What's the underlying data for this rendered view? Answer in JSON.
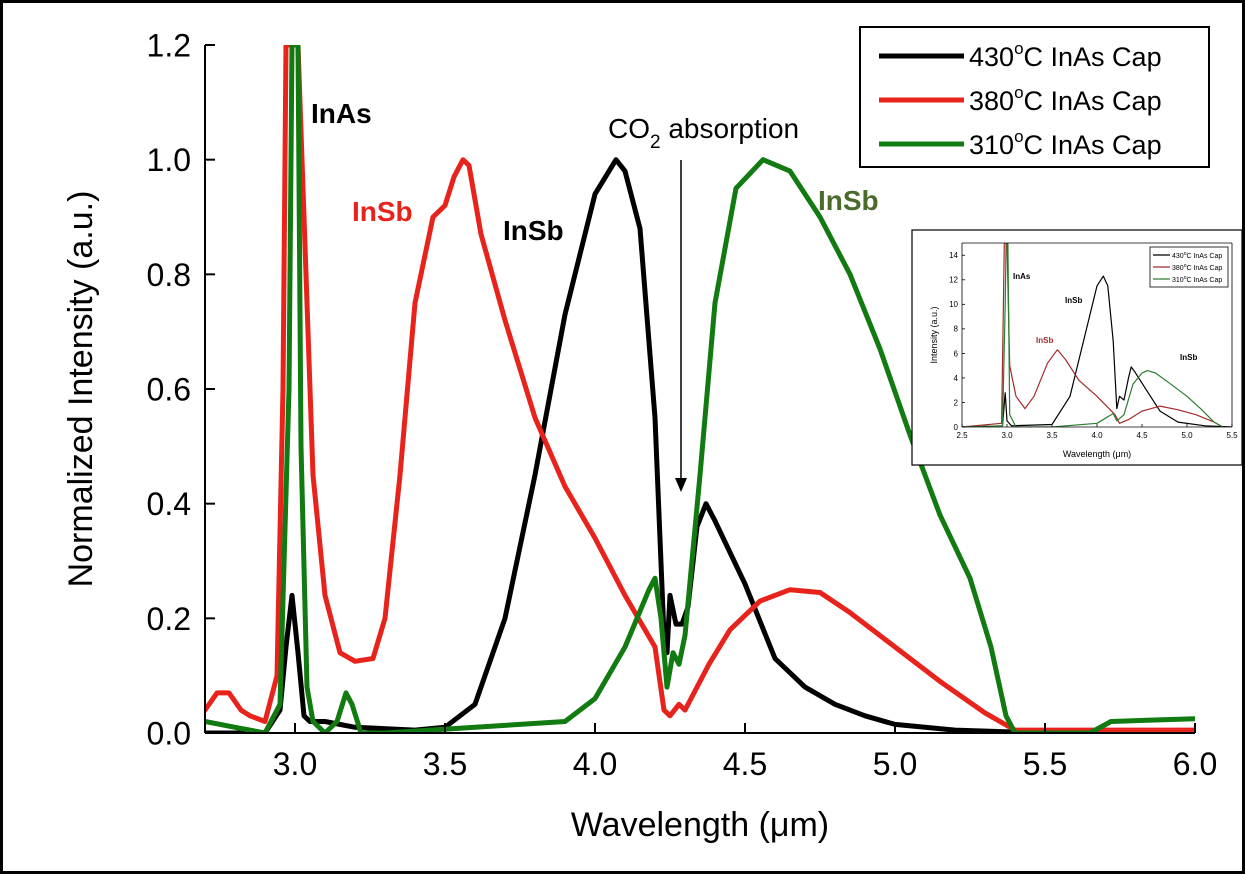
{
  "chart_data": [
    {
      "type": "line",
      "xlabel": "Wavelength (μm)",
      "ylabel": "Normalized Intensity (a.u.)",
      "xlim": [
        2.7,
        6.0
      ],
      "ylim": [
        0.0,
        1.2
      ],
      "x_ticks": [
        "3.0",
        "3.5",
        "4.0",
        "4.5",
        "5.0",
        "5.5",
        "6.0"
      ],
      "y_ticks": [
        "0.0",
        "0.2",
        "0.4",
        "0.6",
        "0.8",
        "1.0",
        "1.2"
      ],
      "legend_position": "top-right",
      "legend": [
        {
          "temp": "430",
          "sup": "o",
          "rest": "C InAs Cap"
        },
        {
          "temp": "380",
          "sup": "o",
          "rest": "C InAs Cap"
        },
        {
          "temp": "310",
          "sup": "o",
          "rest": "C InAs Cap"
        }
      ],
      "annotations": {
        "inas": "InAs",
        "insb_red": "InSb",
        "insb_black": "InSb",
        "insb_green": "InSb",
        "co2_main": "CO",
        "co2_sub": "2",
        "co2_rest": " absorption"
      },
      "series": [
        {
          "name": "430°C InAs Cap",
          "color": "#000000",
          "points": [
            [
              2.7,
              0.0
            ],
            [
              2.9,
              0.0
            ],
            [
              2.95,
              0.04
            ],
            [
              2.97,
              0.15
            ],
            [
              2.99,
              0.24
            ],
            [
              3.01,
              0.14
            ],
            [
              3.03,
              0.03
            ],
            [
              3.05,
              0.02
            ],
            [
              3.1,
              0.02
            ],
            [
              3.2,
              0.01
            ],
            [
              3.4,
              0.005
            ],
            [
              3.5,
              0.01
            ],
            [
              3.6,
              0.05
            ],
            [
              3.7,
              0.2
            ],
            [
              3.8,
              0.45
            ],
            [
              3.9,
              0.73
            ],
            [
              4.0,
              0.94
            ],
            [
              4.07,
              1.0
            ],
            [
              4.1,
              0.98
            ],
            [
              4.15,
              0.88
            ],
            [
              4.2,
              0.55
            ],
            [
              4.23,
              0.17
            ],
            [
              4.24,
              0.14
            ],
            [
              4.25,
              0.24
            ],
            [
              4.27,
              0.19
            ],
            [
              4.29,
              0.19
            ],
            [
              4.31,
              0.22
            ],
            [
              4.34,
              0.36
            ],
            [
              4.37,
              0.4
            ],
            [
              4.4,
              0.37
            ],
            [
              4.5,
              0.26
            ],
            [
              4.6,
              0.13
            ],
            [
              4.7,
              0.08
            ],
            [
              4.8,
              0.05
            ],
            [
              4.9,
              0.03
            ],
            [
              5.0,
              0.015
            ],
            [
              5.2,
              0.005
            ],
            [
              5.5,
              0.0
            ],
            [
              6.0,
              0.0
            ]
          ]
        },
        {
          "name": "380°C InAs Cap",
          "color": "#e8231c",
          "points": [
            [
              2.7,
              0.04
            ],
            [
              2.74,
              0.07
            ],
            [
              2.78,
              0.07
            ],
            [
              2.82,
              0.04
            ],
            [
              2.85,
              0.03
            ],
            [
              2.9,
              0.02
            ],
            [
              2.94,
              0.1
            ],
            [
              2.96,
              0.6
            ],
            [
              2.97,
              1.2
            ],
            [
              3.01,
              1.2
            ],
            [
              3.03,
              0.9
            ],
            [
              3.06,
              0.45
            ],
            [
              3.1,
              0.24
            ],
            [
              3.15,
              0.14
            ],
            [
              3.2,
              0.125
            ],
            [
              3.26,
              0.13
            ],
            [
              3.3,
              0.2
            ],
            [
              3.35,
              0.45
            ],
            [
              3.4,
              0.75
            ],
            [
              3.46,
              0.9
            ],
            [
              3.5,
              0.92
            ],
            [
              3.53,
              0.97
            ],
            [
              3.56,
              1.0
            ],
            [
              3.58,
              0.99
            ],
            [
              3.62,
              0.87
            ],
            [
              3.7,
              0.72
            ],
            [
              3.8,
              0.55
            ],
            [
              3.9,
              0.43
            ],
            [
              4.0,
              0.34
            ],
            [
              4.1,
              0.24
            ],
            [
              4.2,
              0.15
            ],
            [
              4.23,
              0.04
            ],
            [
              4.25,
              0.03
            ],
            [
              4.28,
              0.05
            ],
            [
              4.3,
              0.04
            ],
            [
              4.33,
              0.07
            ],
            [
              4.38,
              0.12
            ],
            [
              4.45,
              0.18
            ],
            [
              4.55,
              0.23
            ],
            [
              4.65,
              0.25
            ],
            [
              4.75,
              0.245
            ],
            [
              4.85,
              0.21
            ],
            [
              5.0,
              0.15
            ],
            [
              5.15,
              0.09
            ],
            [
              5.3,
              0.035
            ],
            [
              5.4,
              0.005
            ],
            [
              5.8,
              0.005
            ],
            [
              6.0,
              0.005
            ]
          ]
        },
        {
          "name": "310°C InAs Cap",
          "color": "#117a11",
          "points": [
            [
              2.7,
              0.02
            ],
            [
              2.8,
              0.01
            ],
            [
              2.9,
              0.0
            ],
            [
              2.95,
              0.05
            ],
            [
              2.98,
              0.6
            ],
            [
              2.99,
              1.2
            ],
            [
              3.01,
              1.2
            ],
            [
              3.02,
              0.5
            ],
            [
              3.04,
              0.08
            ],
            [
              3.06,
              0.02
            ],
            [
              3.1,
              0.0
            ],
            [
              3.14,
              0.02
            ],
            [
              3.17,
              0.07
            ],
            [
              3.19,
              0.05
            ],
            [
              3.22,
              0.0
            ],
            [
              3.3,
              0.0
            ],
            [
              3.6,
              0.01
            ],
            [
              3.9,
              0.02
            ],
            [
              4.0,
              0.06
            ],
            [
              4.1,
              0.15
            ],
            [
              4.18,
              0.25
            ],
            [
              4.2,
              0.27
            ],
            [
              4.22,
              0.2
            ],
            [
              4.24,
              0.08
            ],
            [
              4.26,
              0.14
            ],
            [
              4.28,
              0.12
            ],
            [
              4.3,
              0.17
            ],
            [
              4.35,
              0.45
            ],
            [
              4.4,
              0.75
            ],
            [
              4.47,
              0.95
            ],
            [
              4.56,
              1.0
            ],
            [
              4.65,
              0.98
            ],
            [
              4.75,
              0.9
            ],
            [
              4.85,
              0.8
            ],
            [
              4.95,
              0.67
            ],
            [
              5.05,
              0.52
            ],
            [
              5.15,
              0.38
            ],
            [
              5.25,
              0.27
            ],
            [
              5.32,
              0.15
            ],
            [
              5.37,
              0.03
            ],
            [
              5.4,
              0.0
            ],
            [
              5.65,
              0.0
            ],
            [
              5.72,
              0.02
            ],
            [
              6.0,
              0.025
            ]
          ]
        }
      ]
    },
    {
      "type": "line",
      "xlabel": "Wavelength (μm)",
      "ylabel": "Intensity (a.u.)",
      "xlim": [
        2.5,
        5.5
      ],
      "ylim": [
        0,
        15
      ],
      "x_ticks": [
        "2.5",
        "3.0",
        "3.5",
        "4.0",
        "4.5",
        "5.0",
        "5.5"
      ],
      "y_ticks": [
        "0",
        "2",
        "4",
        "6",
        "8",
        "10",
        "12",
        "14"
      ],
      "legend_position": "top-right",
      "legend": [
        {
          "temp": "430",
          "sup": "o",
          "rest": "C InAs Cap"
        },
        {
          "temp": "380",
          "sup": "o",
          "rest": "C InAs Cap"
        },
        {
          "temp": "310",
          "sup": "o",
          "rest": "C InAs Cap"
        }
      ],
      "annotations": {
        "inas": "InAs",
        "insb_red": "InSb",
        "insb_black": "InSb",
        "insb_green": "InSb"
      },
      "series": [
        {
          "name": "430°C InAs Cap",
          "color": "#000000",
          "points": [
            [
              2.5,
              0.0
            ],
            [
              2.95,
              0.1
            ],
            [
              2.98,
              2.8
            ],
            [
              3.0,
              0.5
            ],
            [
              3.05,
              0.1
            ],
            [
              3.5,
              0.2
            ],
            [
              3.7,
              2.5
            ],
            [
              3.85,
              7.0
            ],
            [
              4.0,
              11.5
            ],
            [
              4.07,
              12.3
            ],
            [
              4.12,
              11.5
            ],
            [
              4.18,
              7.0
            ],
            [
              4.22,
              1.5
            ],
            [
              4.25,
              2.5
            ],
            [
              4.3,
              2.2
            ],
            [
              4.35,
              4.0
            ],
            [
              4.38,
              4.9
            ],
            [
              4.42,
              4.5
            ],
            [
              4.55,
              3.0
            ],
            [
              4.7,
              1.3
            ],
            [
              4.9,
              0.4
            ],
            [
              5.2,
              0.1
            ],
            [
              5.5,
              0.0
            ]
          ]
        },
        {
          "name": "380°C InAs Cap",
          "color": "#a52a2a",
          "points": [
            [
              2.5,
              0.0
            ],
            [
              2.94,
              0.3
            ],
            [
              2.96,
              10.0
            ],
            [
              2.97,
              15.0
            ],
            [
              3.0,
              15.0
            ],
            [
              3.03,
              5.0
            ],
            [
              3.1,
              2.5
            ],
            [
              3.2,
              1.5
            ],
            [
              3.3,
              2.5
            ],
            [
              3.45,
              5.2
            ],
            [
              3.56,
              6.3
            ],
            [
              3.65,
              5.5
            ],
            [
              3.8,
              3.8
            ],
            [
              4.0,
              2.5
            ],
            [
              4.2,
              1.0
            ],
            [
              4.25,
              0.3
            ],
            [
              4.35,
              0.6
            ],
            [
              4.5,
              1.3
            ],
            [
              4.7,
              1.7
            ],
            [
              4.9,
              1.4
            ],
            [
              5.1,
              1.0
            ],
            [
              5.3,
              0.4
            ],
            [
              5.4,
              0.0
            ]
          ]
        },
        {
          "name": "310°C InAs Cap",
          "color": "#2e7d32",
          "points": [
            [
              2.5,
              0.0
            ],
            [
              2.95,
              0.1
            ],
            [
              2.98,
              10.0
            ],
            [
              2.99,
              15.0
            ],
            [
              3.01,
              15.0
            ],
            [
              3.03,
              1.0
            ],
            [
              3.1,
              0.0
            ],
            [
              3.5,
              0.0
            ],
            [
              4.0,
              0.3
            ],
            [
              4.18,
              1.1
            ],
            [
              4.22,
              0.5
            ],
            [
              4.3,
              1.0
            ],
            [
              4.4,
              3.5
            ],
            [
              4.5,
              4.4
            ],
            [
              4.56,
              4.6
            ],
            [
              4.65,
              4.4
            ],
            [
              4.8,
              3.6
            ],
            [
              5.0,
              2.5
            ],
            [
              5.15,
              1.5
            ],
            [
              5.3,
              0.4
            ],
            [
              5.4,
              0.0
            ]
          ]
        }
      ]
    }
  ]
}
